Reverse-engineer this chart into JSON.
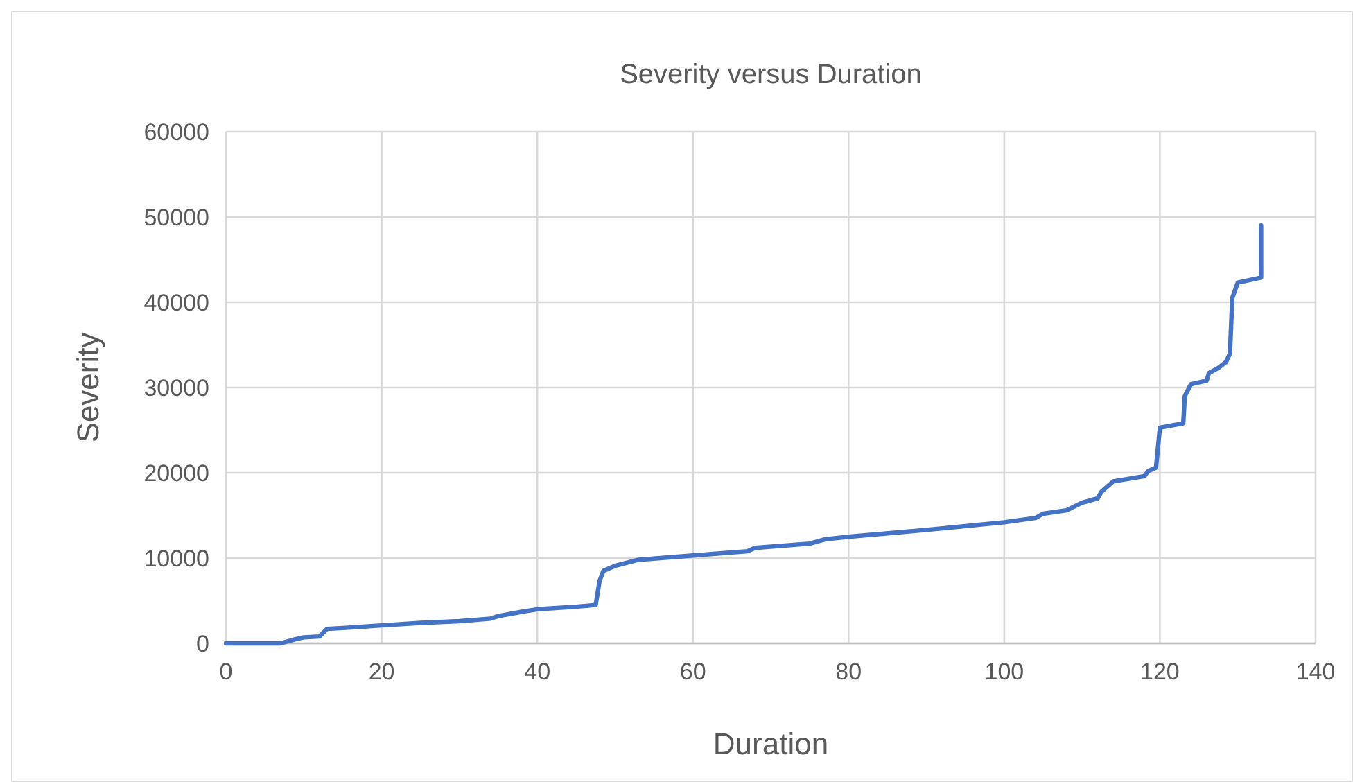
{
  "chart_data": {
    "type": "line",
    "title": "Severity versus Duration",
    "xlabel": "Duration",
    "ylabel": "Severity",
    "xlim": [
      0,
      140
    ],
    "xticks": [
      0,
      20,
      40,
      60,
      80,
      100,
      120,
      140
    ],
    "ylim": [
      0,
      60000
    ],
    "yticks": [
      0,
      10000,
      20000,
      30000,
      40000,
      50000,
      60000
    ],
    "grid": true,
    "marker": "none",
    "line_style": "solid",
    "series": [
      {
        "color": "#4472c4",
        "x": [
          0,
          7,
          9,
          10,
          12,
          13,
          15,
          20,
          25,
          30,
          34,
          35,
          38,
          40,
          45,
          47.5,
          48,
          48.5,
          50,
          53,
          60,
          67,
          68,
          75,
          77,
          80,
          90,
          100,
          104,
          105,
          108,
          110,
          112,
          112.5,
          114,
          118,
          118.5,
          119.5,
          120,
          123,
          123.2,
          124,
          126,
          126.3,
          127.5,
          128.5,
          129,
          129.3,
          130,
          133,
          133
        ],
        "values": [
          0,
          0,
          500,
          700,
          800,
          1700,
          1800,
          2100,
          2400,
          2600,
          2900,
          3200,
          3700,
          4000,
          4300,
          4500,
          7300,
          8500,
          9100,
          9800,
          10300,
          10800,
          11200,
          11700,
          12200,
          12500,
          13300,
          14200,
          14700,
          15200,
          15600,
          16500,
          17000,
          17800,
          19000,
          19600,
          20200,
          20600,
          25300,
          25800,
          29000,
          30400,
          30800,
          31700,
          32300,
          33000,
          34000,
          40500,
          42300,
          42900,
          49000
        ]
      }
    ]
  }
}
